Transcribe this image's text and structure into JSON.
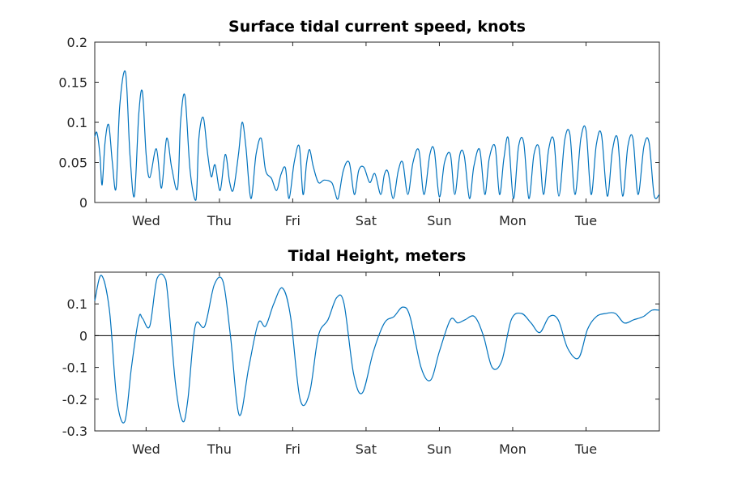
{
  "chart_data": [
    {
      "type": "line",
      "title": "Surface tidal current speed, knots",
      "xlabel": "",
      "ylabel": "",
      "xlim": [
        0.3,
        8.0
      ],
      "ylim": [
        0,
        0.2
      ],
      "yticks": [
        0,
        0.05,
        0.1,
        0.15,
        0.2
      ],
      "ytick_labels": [
        "0",
        "0.05",
        "0.1",
        "0.15",
        "0.2"
      ],
      "xticks": [
        1,
        2,
        3,
        4,
        5,
        6,
        7
      ],
      "xtick_labels": [
        "Wed",
        "Thu",
        "Fri",
        "Sat",
        "Sun",
        "Mon",
        "Tue"
      ],
      "line_color": "#0072BD",
      "grid": false,
      "series": [
        {
          "x": [
            0.3,
            0.33,
            0.37,
            0.4,
            0.44,
            0.49,
            0.54,
            0.59,
            0.64,
            0.72,
            0.78,
            0.84,
            0.9,
            0.95,
            1.0,
            1.05,
            1.14,
            1.21,
            1.28,
            1.35,
            1.43,
            1.47,
            1.53,
            1.6,
            1.68,
            1.72,
            1.78,
            1.84,
            1.89,
            1.94,
            2.01,
            2.08,
            2.14,
            2.19,
            2.26,
            2.31,
            2.36,
            2.43,
            2.5,
            2.57,
            2.63,
            2.71,
            2.78,
            2.84,
            2.9,
            2.95,
            3.02,
            3.09,
            3.14,
            3.19,
            3.23,
            3.28,
            3.35,
            3.43,
            3.53,
            3.57,
            3.62,
            3.69,
            3.77,
            3.84,
            3.9,
            3.97,
            4.05,
            4.12,
            4.2,
            4.25,
            4.3,
            4.37,
            4.44,
            4.5,
            4.57,
            4.64,
            4.72,
            4.79,
            4.87,
            4.93,
            5.0,
            5.07,
            5.15,
            5.21,
            5.28,
            5.34,
            5.41,
            5.47,
            5.55,
            5.62,
            5.68,
            5.76,
            5.82,
            5.88,
            5.94,
            6.01,
            6.08,
            6.15,
            6.22,
            6.29,
            6.36,
            6.42,
            6.49,
            6.56,
            6.63,
            6.71,
            6.78,
            6.85,
            6.93,
            7.0,
            7.07,
            7.14,
            7.21,
            7.29,
            7.36,
            7.43,
            7.5,
            7.57,
            7.64,
            7.71,
            7.79,
            7.86,
            7.93,
            8.0
          ],
          "y": [
            0.082,
            0.087,
            0.06,
            0.022,
            0.075,
            0.097,
            0.05,
            0.018,
            0.12,
            0.162,
            0.06,
            0.008,
            0.11,
            0.138,
            0.06,
            0.031,
            0.067,
            0.018,
            0.08,
            0.043,
            0.018,
            0.1,
            0.133,
            0.04,
            0.003,
            0.08,
            0.106,
            0.06,
            0.032,
            0.047,
            0.015,
            0.06,
            0.025,
            0.016,
            0.06,
            0.1,
            0.07,
            0.005,
            0.06,
            0.08,
            0.04,
            0.03,
            0.015,
            0.035,
            0.043,
            0.005,
            0.05,
            0.07,
            0.01,
            0.05,
            0.066,
            0.045,
            0.025,
            0.028,
            0.025,
            0.015,
            0.005,
            0.04,
            0.05,
            0.01,
            0.04,
            0.044,
            0.025,
            0.036,
            0.01,
            0.035,
            0.038,
            0.005,
            0.04,
            0.05,
            0.01,
            0.05,
            0.065,
            0.01,
            0.06,
            0.065,
            0.007,
            0.05,
            0.06,
            0.01,
            0.06,
            0.058,
            0.005,
            0.045,
            0.066,
            0.01,
            0.055,
            0.07,
            0.01,
            0.055,
            0.08,
            0.005,
            0.07,
            0.075,
            0.005,
            0.06,
            0.068,
            0.01,
            0.066,
            0.078,
            0.008,
            0.078,
            0.085,
            0.01,
            0.08,
            0.09,
            0.01,
            0.072,
            0.085,
            0.008,
            0.065,
            0.08,
            0.008,
            0.07,
            0.08,
            0.01,
            0.07,
            0.075,
            0.008,
            0.01
          ]
        }
      ]
    },
    {
      "type": "line",
      "title": "Tidal Height, meters",
      "xlabel": "",
      "ylabel": "",
      "xlim": [
        0.3,
        8.0
      ],
      "ylim": [
        -0.3,
        0.2
      ],
      "yticks": [
        -0.3,
        -0.2,
        -0.1,
        0,
        0.1
      ],
      "ytick_labels": [
        "-0.3",
        "-0.2",
        "-0.1",
        "0",
        "0.1"
      ],
      "xticks": [
        1,
        2,
        3,
        4,
        5,
        6,
        7
      ],
      "xtick_labels": [
        "Wed",
        "Thu",
        "Fri",
        "Sat",
        "Sun",
        "Mon",
        "Tue"
      ],
      "zero_line": true,
      "line_color": "#0072BD",
      "grid": false,
      "series": [
        {
          "x": [
            0.3,
            0.39,
            0.5,
            0.6,
            0.71,
            0.8,
            0.9,
            0.95,
            1.05,
            1.15,
            1.27,
            1.4,
            1.5,
            1.57,
            1.67,
            1.8,
            1.93,
            2.05,
            2.15,
            2.27,
            2.4,
            2.53,
            2.63,
            2.74,
            2.86,
            2.97,
            3.1,
            3.23,
            3.35,
            3.48,
            3.6,
            3.7,
            3.83,
            3.95,
            4.1,
            4.25,
            4.38,
            4.5,
            4.6,
            4.75,
            4.88,
            5.0,
            5.15,
            5.25,
            5.35,
            5.48,
            5.6,
            5.72,
            5.85,
            5.98,
            6.12,
            6.25,
            6.37,
            6.5,
            6.62,
            6.75,
            6.9,
            7.02,
            7.14,
            7.27,
            7.4,
            7.52,
            7.65,
            7.78,
            7.9,
            8.0
          ],
          "y": [
            0.11,
            0.19,
            0.08,
            -0.2,
            -0.27,
            -0.1,
            0.055,
            0.055,
            0.03,
            0.18,
            0.175,
            -0.15,
            -0.27,
            -0.2,
            0.03,
            0.03,
            0.16,
            0.17,
            0.0,
            -0.25,
            -0.1,
            0.04,
            0.03,
            0.1,
            0.15,
            0.06,
            -0.2,
            -0.18,
            0.0,
            0.05,
            0.12,
            0.1,
            -0.12,
            -0.18,
            -0.05,
            0.04,
            0.06,
            0.09,
            0.06,
            -0.1,
            -0.14,
            -0.05,
            0.05,
            0.04,
            0.05,
            0.06,
            0.0,
            -0.1,
            -0.08,
            0.05,
            0.07,
            0.04,
            0.01,
            0.06,
            0.05,
            -0.04,
            -0.07,
            0.02,
            0.06,
            0.07,
            0.07,
            0.04,
            0.05,
            0.06,
            0.08,
            0.08
          ]
        }
      ]
    }
  ]
}
